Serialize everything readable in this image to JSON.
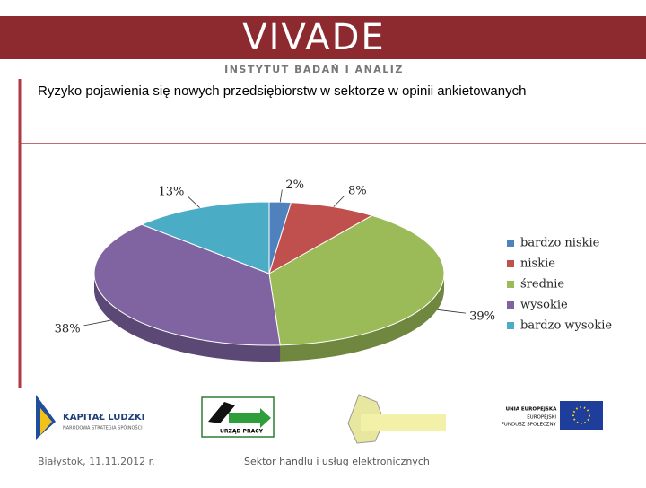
{
  "header": {
    "logo": "VIVADE",
    "subtitle": "INSTYTUT BADAŃ I ANALIZ"
  },
  "chart_data": {
    "type": "pie",
    "title": "Ryzyko pojawienia się nowych przedsiębiorstw w sektorze w opinii ankietowanych",
    "categories": [
      "bardzo niskie",
      "niskie",
      "średnie",
      "wysokie",
      "bardzo wysokie"
    ],
    "values": [
      2,
      8,
      39,
      38,
      13
    ],
    "value_labels": [
      "2%",
      "8%",
      "39%",
      "38%",
      "13%"
    ],
    "colors": [
      "#4f81bd",
      "#c0504d",
      "#9bbb59",
      "#8064a2",
      "#4bacc6"
    ],
    "legend": "right"
  },
  "logos": [
    {
      "title": "KAPITAŁ LUDZKI",
      "subtitle": "NARODOWA STRATEGIA SPÓJNOŚCI"
    },
    {
      "label": "URZĄD PRACY"
    },
    {
      "lines": [
        "UNIA EUROPEJSKA",
        "EUROPEJSKI",
        "FUNDUSZ SPOŁECZNY"
      ]
    }
  ],
  "footer": {
    "date": "Białystok, 11.11.2012 r.",
    "topic": "Sektor handlu i usług elektronicznych"
  }
}
